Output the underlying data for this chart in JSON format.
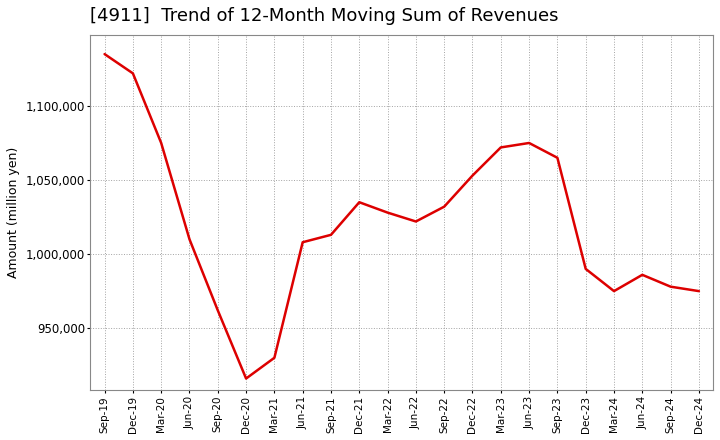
{
  "title": "[4911]  Trend of 12-Month Moving Sum of Revenues",
  "ylabel": "Amount (million yen)",
  "line_color": "#dd0000",
  "line_width": 1.8,
  "background_color": "#ffffff",
  "plot_bg_color": "#ffffff",
  "grid_color": "#999999",
  "x_labels": [
    "Sep-19",
    "Dec-19",
    "Mar-20",
    "Jun-20",
    "Sep-20",
    "Dec-20",
    "Mar-21",
    "Jun-21",
    "Sep-21",
    "Dec-21",
    "Mar-22",
    "Jun-22",
    "Sep-22",
    "Dec-22",
    "Mar-23",
    "Jun-23",
    "Sep-23",
    "Dec-23",
    "Mar-24",
    "Jun-24",
    "Sep-24",
    "Dec-24"
  ],
  "values": [
    1135000,
    1122000,
    1075000,
    1010000,
    962000,
    916000,
    930000,
    1008000,
    1013000,
    1035000,
    1028000,
    1022000,
    1032000,
    1053000,
    1072000,
    1075000,
    1065000,
    990000,
    975000,
    986000,
    978000,
    975000
  ],
  "ylim_min": 908000,
  "ylim_max": 1148000,
  "yticks": [
    950000,
    1000000,
    1050000,
    1100000
  ],
  "title_fontsize": 13,
  "ylabel_fontsize": 9,
  "tick_fontsize": 8.5,
  "xtick_fontsize": 7.5
}
